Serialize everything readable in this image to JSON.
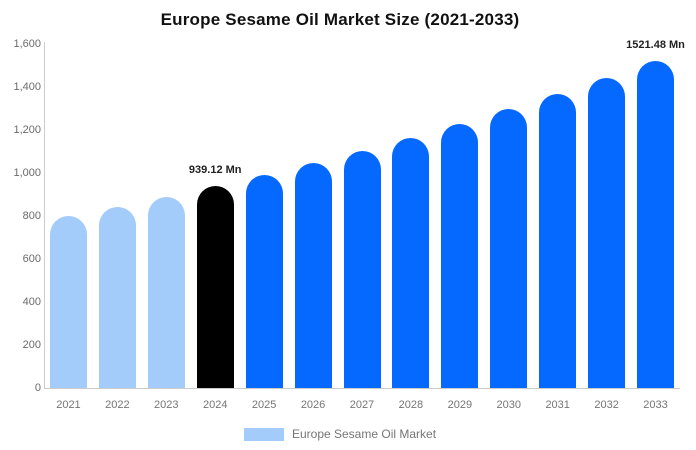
{
  "title": "Europe Sesame Oil Market Size (2021-2033)",
  "legend": {
    "label": "Europe Sesame Oil Market",
    "swatch_color": "#A4CCFA"
  },
  "colors": {
    "historical_bar": "#A4CCFA",
    "highlight_bar": "#000000",
    "forecast_bar": "#0669FF",
    "axis_line": "#CCCCCC",
    "tick_text": "#757575",
    "data_label_text": "#212121",
    "title_text": "#111111"
  },
  "chart_data": {
    "type": "bar",
    "title": "Europe Sesame Oil Market Size (2021-2033)",
    "xlabel": "",
    "ylabel": "",
    "unit": "Mn",
    "ylim": [
      0,
      1600
    ],
    "y_ticks": [
      0,
      200,
      400,
      600,
      800,
      1000,
      1200,
      1400,
      1600
    ],
    "grid": false,
    "legend_position": "bottom",
    "categories": [
      "2021",
      "2022",
      "2023",
      "2024",
      "2025",
      "2026",
      "2027",
      "2028",
      "2029",
      "2030",
      "2031",
      "2032",
      "2033"
    ],
    "values": [
      800,
      844,
      890,
      939.12,
      991,
      1045,
      1103,
      1164,
      1228,
      1296,
      1367,
      1442,
      1521.48
    ],
    "bar_colors": [
      "#A4CCFA",
      "#A4CCFA",
      "#A4CCFA",
      "#000000",
      "#0669FF",
      "#0669FF",
      "#0669FF",
      "#0669FF",
      "#0669FF",
      "#0669FF",
      "#0669FF",
      "#0669FF",
      "#0669FF"
    ],
    "data_labels": [
      null,
      null,
      null,
      "939.12 Mn",
      null,
      null,
      null,
      null,
      null,
      null,
      null,
      null,
      "1521.48 Mn"
    ]
  }
}
